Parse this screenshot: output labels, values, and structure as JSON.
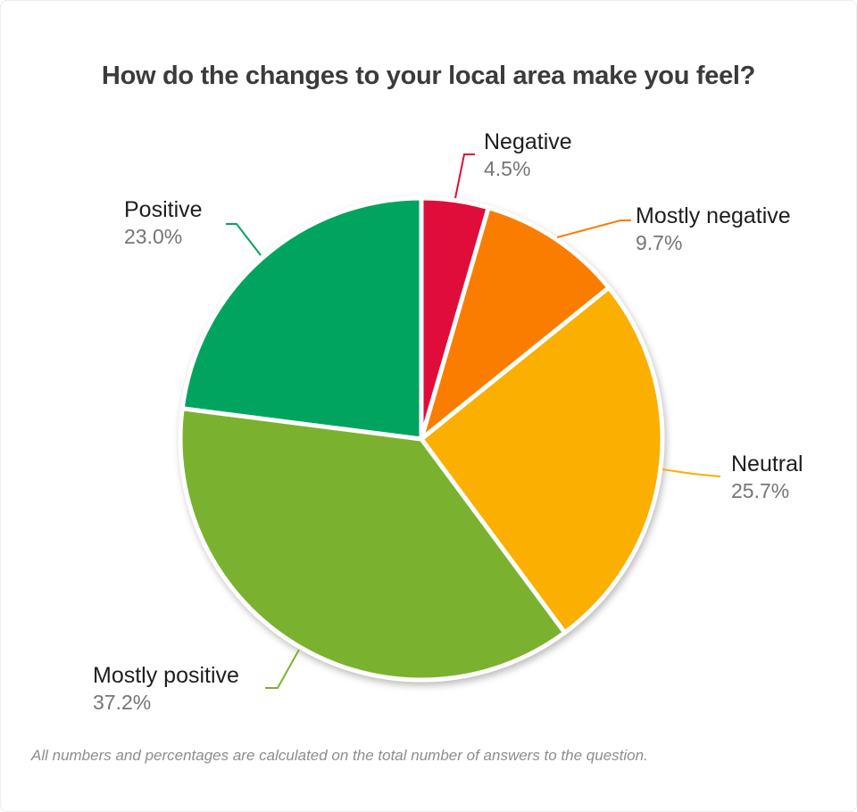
{
  "title": "How do the changes to your local area make you feel?",
  "footnote": "All numbers and percentages are calculated on the total number of answers to the question.",
  "chart_data": {
    "type": "pie",
    "title": "How do the changes to your local area make you feel?",
    "start_angle_deg": 0,
    "direction": "clockwise",
    "legend_position": "none",
    "labels_style": "outside-callout",
    "slices": [
      {
        "label": "Negative",
        "value": 4.5,
        "pct_label": "4.5%",
        "color": "#E00D3A"
      },
      {
        "label": "Mostly negative",
        "value": 9.7,
        "pct_label": "9.7%",
        "color": "#FB7D00"
      },
      {
        "label": "Neutral",
        "value": 25.7,
        "pct_label": "25.7%",
        "color": "#FBAF00"
      },
      {
        "label": "Mostly positive",
        "value": 37.2,
        "pct_label": "37.2%",
        "color": "#7AB22F"
      },
      {
        "label": "Positive",
        "value": 23.0,
        "pct_label": "23.0%",
        "color": "#00A45E"
      }
    ],
    "text_colors": {
      "title": "#3b3b3b",
      "label_name": "#1e1e1e",
      "label_pct": "#757575",
      "footnote": "#8d8d8d"
    }
  }
}
